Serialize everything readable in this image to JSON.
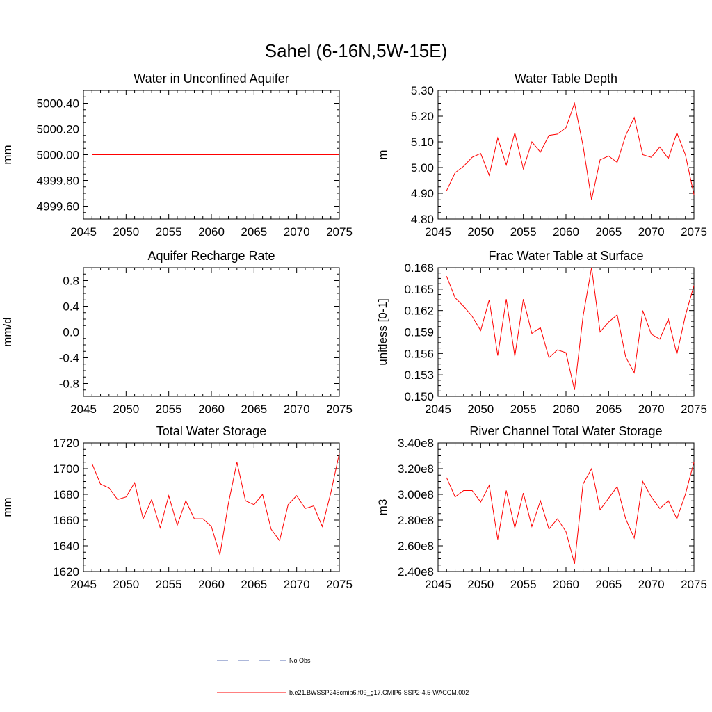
{
  "title": "Sahel (6-16N,5W-15E)",
  "colors": {
    "series": "#ff0000",
    "obs": "#5a6fb4",
    "axis": "#000000"
  },
  "legend": [
    {
      "label": "No Obs",
      "style": "dashed",
      "color": "#5a6fb4"
    },
    {
      "label": "b.e21.BWSSP245cmip6.f09_g17.CMIP6-SSP2-4.5-WACCM.002",
      "style": "solid",
      "color": "#ff0000"
    }
  ],
  "chart_data": [
    {
      "type": "line",
      "title": "Water in Unconfined Aquifer",
      "ylabel": "mm",
      "xlim": [
        2045,
        2075
      ],
      "ylim": [
        4999.5,
        5000.5
      ],
      "xticks": [
        "2045",
        "2050",
        "2055",
        "2060",
        "2065",
        "2070",
        "2075"
      ],
      "yticks": [
        "4999.60",
        "4999.80",
        "5000.00",
        "5000.20",
        "5000.40"
      ],
      "x": [
        2046,
        2075
      ],
      "values": [
        5000.0,
        5000.0
      ]
    },
    {
      "type": "line",
      "title": "Water Table Depth",
      "ylabel": "m",
      "xlim": [
        2045,
        2075
      ],
      "ylim": [
        4.8,
        5.3
      ],
      "xticks": [
        "2045",
        "2050",
        "2055",
        "2060",
        "2065",
        "2070",
        "2075"
      ],
      "yticks": [
        "4.80",
        "4.90",
        "5.00",
        "5.10",
        "5.20",
        "5.30"
      ],
      "x": [
        2046,
        2047,
        2048,
        2049,
        2050,
        2051,
        2052,
        2053,
        2054,
        2055,
        2056,
        2057,
        2058,
        2059,
        2060,
        2061,
        2062,
        2063,
        2064,
        2065,
        2066,
        2067,
        2068,
        2069,
        2070,
        2071,
        2072,
        2073,
        2074,
        2075
      ],
      "values": [
        4.91,
        4.98,
        5.005,
        5.04,
        5.055,
        4.97,
        5.115,
        5.01,
        5.135,
        4.995,
        5.1,
        5.06,
        5.125,
        5.13,
        5.155,
        5.25,
        5.085,
        4.875,
        5.03,
        5.045,
        5.02,
        5.125,
        5.195,
        5.05,
        5.04,
        5.08,
        5.035,
        5.135,
        5.05,
        4.895
      ]
    },
    {
      "type": "line",
      "title": "Aquifer Recharge Rate",
      "ylabel": "mm/d",
      "xlim": [
        2045,
        2075
      ],
      "ylim": [
        -1.0,
        1.0
      ],
      "xticks": [
        "2045",
        "2050",
        "2055",
        "2060",
        "2065",
        "2070",
        "2075"
      ],
      "yticks": [
        "-0.8",
        "-0.4",
        "0.0",
        "0.4",
        "0.8"
      ],
      "x": [
        2046,
        2075
      ],
      "values": [
        0.0,
        0.0
      ]
    },
    {
      "type": "line",
      "title": "Frac Water Table at Surface",
      "ylabel": "unitless [0-1]",
      "xlim": [
        2045,
        2075
      ],
      "ylim": [
        0.15,
        0.168
      ],
      "xticks": [
        "2045",
        "2050",
        "2055",
        "2060",
        "2065",
        "2070",
        "2075"
      ],
      "yticks": [
        "0.150",
        "0.153",
        "0.156",
        "0.159",
        "0.162",
        "0.165",
        "0.168"
      ],
      "x": [
        2046,
        2047,
        2048,
        2049,
        2050,
        2051,
        2052,
        2053,
        2054,
        2055,
        2056,
        2057,
        2058,
        2059,
        2060,
        2061,
        2062,
        2063,
        2064,
        2065,
        2066,
        2067,
        2068,
        2069,
        2070,
        2071,
        2072,
        2073,
        2074,
        2075
      ],
      "values": [
        0.1668,
        0.1638,
        0.1626,
        0.1612,
        0.1592,
        0.1635,
        0.1557,
        0.1636,
        0.1556,
        0.1636,
        0.1588,
        0.1596,
        0.1554,
        0.1565,
        0.1561,
        0.1509,
        0.1612,
        0.168,
        0.159,
        0.1604,
        0.1614,
        0.1555,
        0.1533,
        0.162,
        0.1587,
        0.158,
        0.1608,
        0.1559,
        0.1613,
        0.1655
      ]
    },
    {
      "type": "line",
      "title": "Total Water Storage",
      "ylabel": "mm",
      "xlim": [
        2045,
        2075
      ],
      "ylim": [
        1620,
        1720
      ],
      "xticks": [
        "2045",
        "2050",
        "2055",
        "2060",
        "2065",
        "2070",
        "2075"
      ],
      "yticks": [
        "1620",
        "1640",
        "1660",
        "1680",
        "1700",
        "1720"
      ],
      "x": [
        2046,
        2047,
        2048,
        2049,
        2050,
        2051,
        2052,
        2053,
        2054,
        2055,
        2056,
        2057,
        2058,
        2059,
        2060,
        2061,
        2062,
        2063,
        2064,
        2065,
        2066,
        2067,
        2068,
        2069,
        2070,
        2071,
        2072,
        2073,
        2074,
        2075
      ],
      "values": [
        1704,
        1688,
        1685,
        1676,
        1678,
        1689,
        1661,
        1676,
        1654,
        1679,
        1656,
        1675,
        1661,
        1661,
        1655,
        1633,
        1673,
        1705,
        1675,
        1672,
        1680,
        1653,
        1644,
        1672,
        1679,
        1669,
        1671,
        1655,
        1681,
        1712
      ]
    },
    {
      "type": "line",
      "title": "River Channel Total Water Storage",
      "ylabel": "m3",
      "xlim": [
        2045,
        2075
      ],
      "ylim": [
        240000000.0,
        340000000.0
      ],
      "xticks": [
        "2045",
        "2050",
        "2055",
        "2060",
        "2065",
        "2070",
        "2075"
      ],
      "yticks": [
        "2.40e8",
        "2.60e8",
        "2.80e8",
        "3.00e8",
        "3.20e8",
        "3.40e8"
      ],
      "x": [
        2046,
        2047,
        2048,
        2049,
        2050,
        2051,
        2052,
        2053,
        2054,
        2055,
        2056,
        2057,
        2058,
        2059,
        2060,
        2061,
        2062,
        2063,
        2064,
        2065,
        2066,
        2067,
        2068,
        2069,
        2070,
        2071,
        2072,
        2073,
        2074,
        2075
      ],
      "values": [
        313000000.0,
        298000000.0,
        303000000.0,
        303000000.0,
        294000000.0,
        307000000.0,
        265000000.0,
        303000000.0,
        274000000.0,
        301000000.0,
        275000000.0,
        295000000.0,
        273000000.0,
        281000000.0,
        271000000.0,
        246000000.0,
        308000000.0,
        320000000.0,
        288000000.0,
        297000000.0,
        306000000.0,
        281000000.0,
        266000000.0,
        310000000.0,
        298000000.0,
        289000000.0,
        295000000.0,
        281000000.0,
        300000000.0,
        325000000.0
      ]
    }
  ]
}
